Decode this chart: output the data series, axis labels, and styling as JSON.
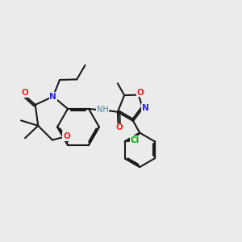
{
  "background_color": "#ebebeb",
  "bond_color": "#1a1a1a",
  "atom_colors": {
    "N": "#2222ee",
    "O": "#ee2222",
    "Cl": "#00aa00",
    "C": "#1a1a1a",
    "NH": "#4488aa"
  },
  "figsize": [
    3.0,
    3.0
  ],
  "dpi": 100
}
